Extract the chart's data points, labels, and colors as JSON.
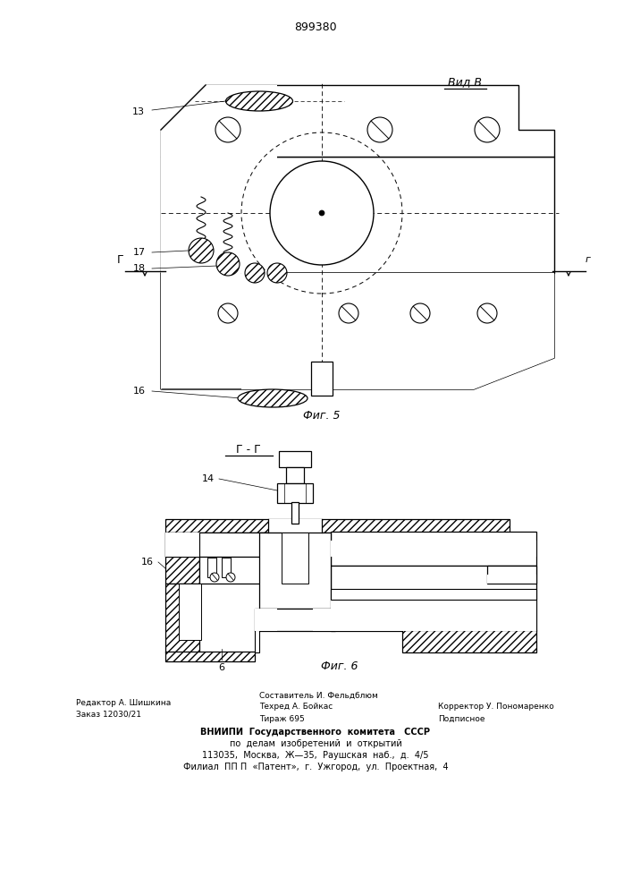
{
  "patent_number": "899380",
  "bg_color": "#ffffff",
  "line_color": "#000000",
  "fig5_label": "Фиг. 5",
  "fig6_label": "Фиг. 6",
  "view_label": "Вид В",
  "section_label": "Г - Г",
  "label_13": "13",
  "label_14": "14",
  "label_16": "16",
  "label_17": "17",
  "label_18": "18",
  "label_6": "6"
}
